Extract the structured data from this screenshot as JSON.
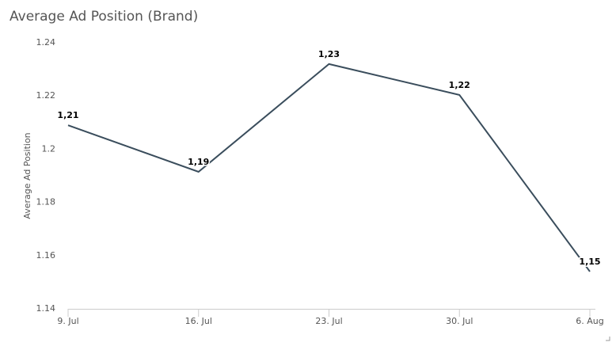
{
  "chart_data": {
    "type": "line",
    "title": "Average Ad Position (Brand)",
    "y_label": "Average Ad Position",
    "categories": [
      "9. Jul",
      "16. Jul",
      "23. Jul",
      "30. Jul",
      "6. Aug"
    ],
    "values": [
      1.209,
      1.1915,
      1.232,
      1.2204,
      1.154
    ],
    "value_labels": [
      "1,21",
      "1,19",
      "1,23",
      "1,22",
      "1,15"
    ],
    "color": "#3a4d5c",
    "ylim": [
      1.14,
      1.24
    ],
    "yticks": [
      1.14,
      1.16,
      1.18,
      1.2,
      1.22,
      1.24
    ],
    "grid": false
  }
}
